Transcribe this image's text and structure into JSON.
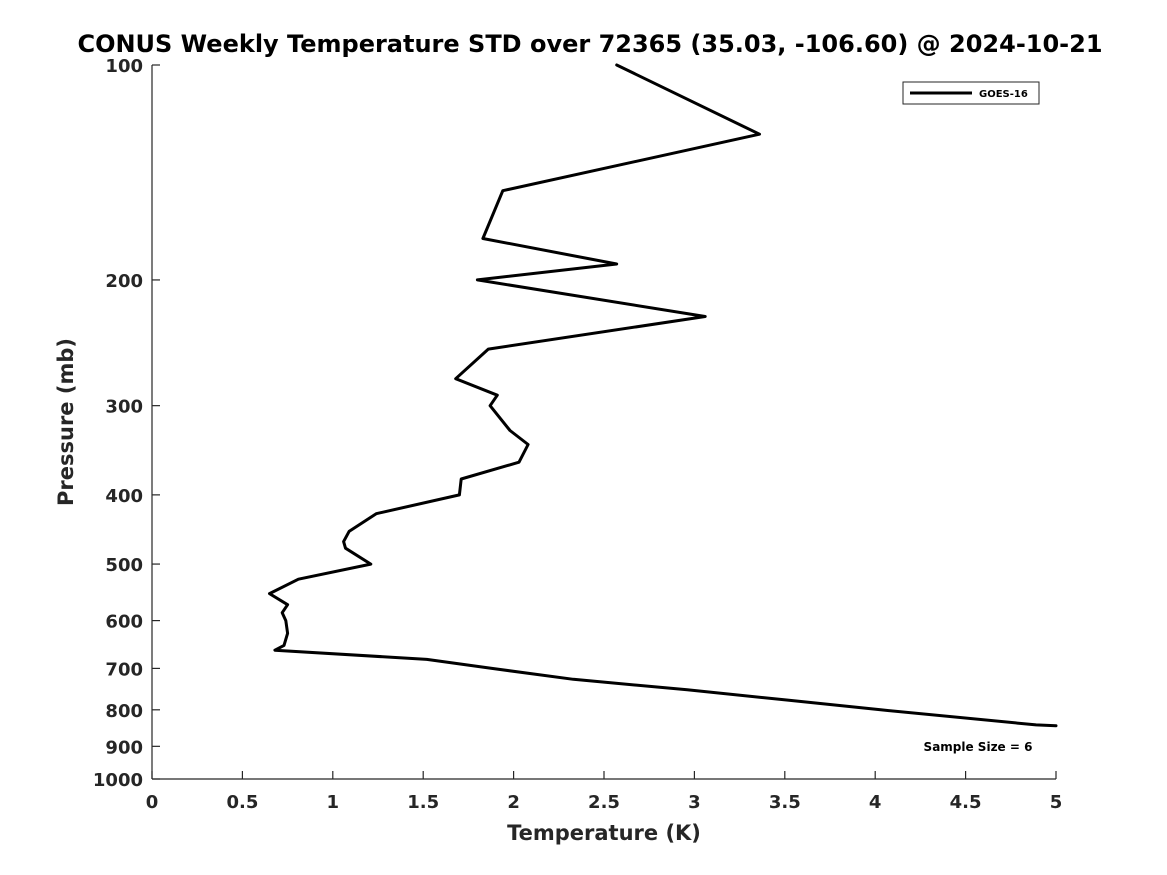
{
  "chart_data": {
    "type": "line",
    "title": "CONUS Weekly Temperature STD over 72365 (35.03, -106.60) @ 2024-10-21",
    "xlabel": "Temperature (K)",
    "ylabel": "Pressure (mb)",
    "xlim": [
      0,
      5
    ],
    "ylim": [
      100,
      1000
    ],
    "yscale": "log",
    "y_reversed": true,
    "grid": false,
    "legend_position": "top-right",
    "x_ticks": [
      0,
      0.5,
      1,
      1.5,
      2,
      2.5,
      3,
      3.5,
      4,
      4.5,
      5
    ],
    "x_tick_labels": [
      "0",
      "0.5",
      "1",
      "1.5",
      "2",
      "2.5",
      "3",
      "3.5",
      "4",
      "4.5",
      "5"
    ],
    "y_ticks": [
      100,
      200,
      300,
      400,
      500,
      600,
      700,
      800,
      900,
      1000
    ],
    "y_tick_labels": [
      "100",
      "200",
      "300",
      "400",
      "500",
      "600",
      "700",
      "800",
      "900",
      "1000"
    ],
    "series": [
      {
        "name": "GOES-16",
        "color": "#000000",
        "points": [
          [
            2.57,
            100
          ],
          [
            3.36,
            125
          ],
          [
            1.94,
            150
          ],
          [
            1.83,
            175
          ],
          [
            2.57,
            190
          ],
          [
            1.8,
            200
          ],
          [
            3.06,
            225
          ],
          [
            1.86,
            250
          ],
          [
            1.68,
            275
          ],
          [
            1.91,
            290
          ],
          [
            1.87,
            300
          ],
          [
            1.98,
            325
          ],
          [
            2.08,
            340
          ],
          [
            2.03,
            360
          ],
          [
            1.71,
            380
          ],
          [
            1.7,
            400
          ],
          [
            1.24,
            425
          ],
          [
            1.09,
            450
          ],
          [
            1.06,
            465
          ],
          [
            1.07,
            475
          ],
          [
            1.21,
            500
          ],
          [
            0.81,
            525
          ],
          [
            0.65,
            550
          ],
          [
            0.75,
            570
          ],
          [
            0.72,
            585
          ],
          [
            0.74,
            600
          ],
          [
            0.75,
            625
          ],
          [
            0.73,
            650
          ],
          [
            0.68,
            660
          ],
          [
            1.52,
            680
          ],
          [
            1.88,
            700
          ],
          [
            2.33,
            725
          ],
          [
            2.96,
            750
          ],
          [
            3.51,
            775
          ],
          [
            4.03,
            800
          ],
          [
            4.89,
            840
          ],
          [
            5.0,
            842
          ]
        ]
      }
    ],
    "annotation": "Sample Size = 6"
  }
}
